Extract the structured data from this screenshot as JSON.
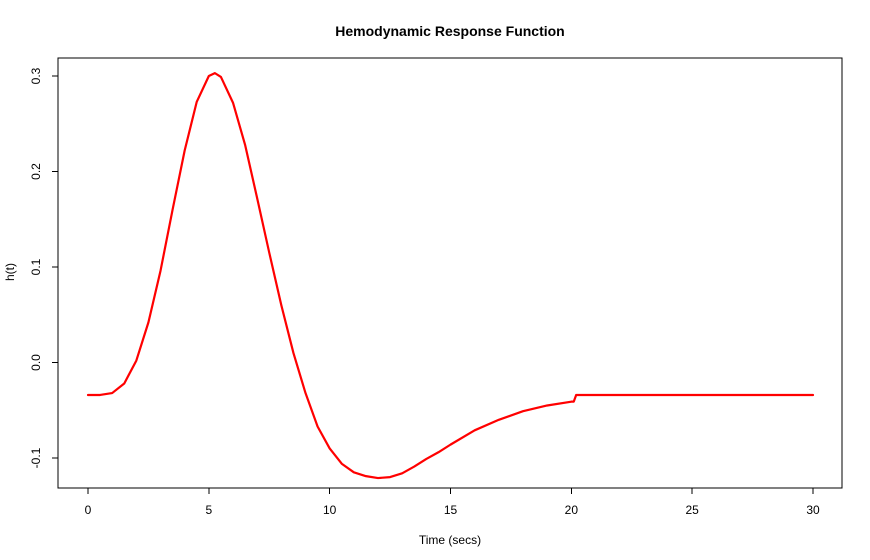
{
  "chart_data": {
    "type": "line",
    "title": "Hemodynamic Response Function",
    "xlabel": "Time (secs)",
    "ylabel": "h(t)",
    "xlim": [
      0,
      30
    ],
    "ylim": [
      -0.1,
      0.3
    ],
    "xticks": [
      0,
      5,
      10,
      15,
      20,
      25,
      30
    ],
    "yticks": [
      -0.1,
      0.0,
      0.1,
      0.2,
      0.3
    ],
    "xtick_labels": [
      "0",
      "5",
      "10",
      "15",
      "20",
      "25",
      "30"
    ],
    "ytick_labels": [
      "-0.1",
      "0.0",
      "0.1",
      "0.2",
      "0.3"
    ],
    "grid": false,
    "legend": "none",
    "series": [
      {
        "color": "#ff0000",
        "x": [
          0,
          0.5,
          1,
          1.5,
          2,
          2.5,
          3,
          3.5,
          4,
          4.5,
          5,
          5.25,
          5.5,
          6,
          6.5,
          7,
          7.5,
          8,
          8.5,
          9,
          9.5,
          10,
          10.5,
          11,
          11.5,
          12,
          12.5,
          13,
          13.5,
          14,
          14.5,
          15,
          16,
          17,
          18,
          19,
          20,
          20.1,
          20.2,
          21,
          25,
          30
        ],
        "y": [
          -0.034,
          -0.034,
          -0.032,
          -0.022,
          0.002,
          0.042,
          0.096,
          0.16,
          0.222,
          0.273,
          0.3,
          0.303,
          0.299,
          0.272,
          0.228,
          0.172,
          0.115,
          0.06,
          0.01,
          -0.032,
          -0.067,
          -0.09,
          -0.106,
          -0.115,
          -0.119,
          -0.121,
          -0.12,
          -0.116,
          -0.109,
          -0.101,
          -0.094,
          -0.086,
          -0.071,
          -0.06,
          -0.051,
          -0.045,
          -0.041,
          -0.041,
          -0.034,
          -0.034,
          -0.034,
          -0.034
        ]
      }
    ]
  }
}
